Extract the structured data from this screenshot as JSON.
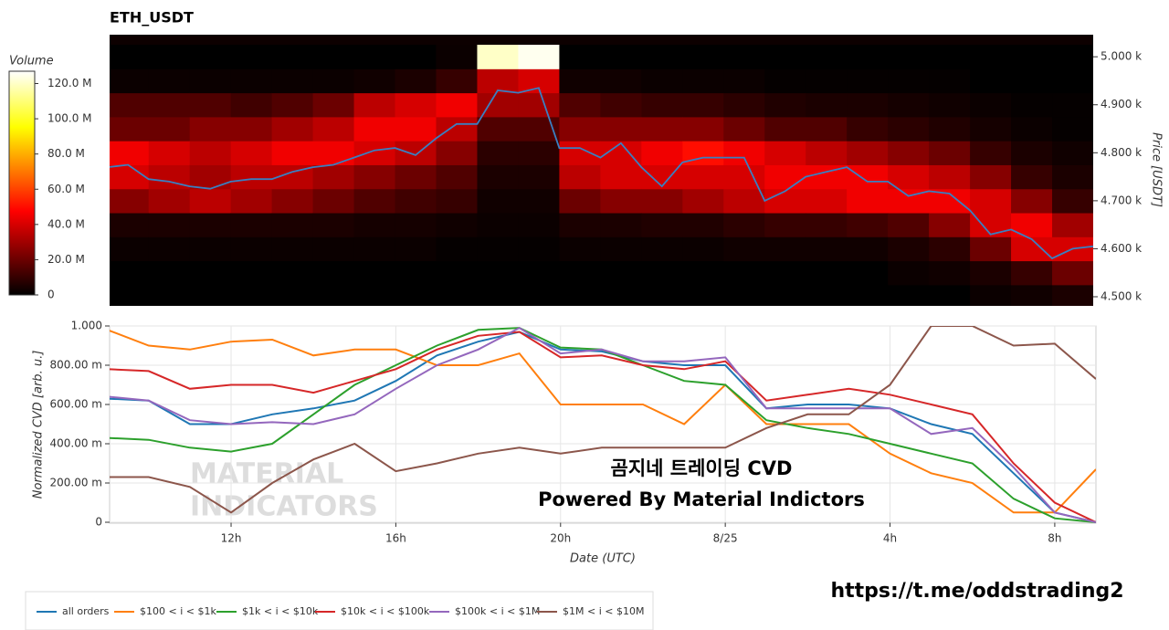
{
  "chart_data": [
    {
      "type": "heatmap",
      "title": "ETH_USDT",
      "colorbar_label": "Volume",
      "colorscale": "hot",
      "clim": [
        0,
        127
      ],
      "cticks": [
        0,
        {
          "value": 20,
          "label": "20.0 M"
        },
        {
          "value": 40,
          "label": "40.0 M"
        },
        {
          "value": 60,
          "label": "60.0 M"
        },
        {
          "value": 80,
          "label": "80.0 M"
        },
        {
          "value": 100,
          "label": "100.0 M"
        },
        {
          "value": 120,
          "label": "120.0 M"
        }
      ],
      "ylabel": "Price [USDT]",
      "ylim": [
        4481,
        5046
      ],
      "yticks": [
        {
          "value": 4500,
          "label": "4.500 k"
        },
        {
          "value": 4600,
          "label": "4.600 k"
        },
        {
          "value": 4700,
          "label": "4.700 k"
        },
        {
          "value": 4800,
          "label": "4.800 k"
        },
        {
          "value": 4900,
          "label": "4.900 k"
        },
        {
          "value": 5000,
          "label": "5.000 k"
        }
      ],
      "xlim": [
        9.05,
        33
      ],
      "xbins": [
        9,
        10,
        11,
        12,
        13,
        14,
        15,
        16,
        17,
        18,
        19,
        20,
        21,
        22,
        23,
        24,
        25,
        26,
        27,
        28,
        29,
        30,
        31,
        32,
        33
      ],
      "ybins": [
        4475,
        4525,
        4575,
        4625,
        4675,
        4725,
        4775,
        4825,
        4875,
        4925,
        4975,
        5025
      ],
      "z": [
        [
          0,
          0,
          2,
          5,
          25,
          40,
          45,
          20,
          15,
          2,
          0
        ],
        [
          0,
          0,
          2,
          5,
          30,
          35,
          40,
          20,
          15,
          2,
          0
        ],
        [
          0,
          0,
          2,
          5,
          35,
          30,
          35,
          25,
          15,
          2,
          0
        ],
        [
          0,
          0,
          2,
          5,
          30,
          35,
          40,
          25,
          12,
          2,
          0
        ],
        [
          0,
          0,
          2,
          5,
          25,
          35,
          45,
          30,
          15,
          2,
          0
        ],
        [
          0,
          0,
          2,
          5,
          20,
          30,
          45,
          35,
          20,
          2,
          0
        ],
        [
          0,
          0,
          2,
          4,
          15,
          25,
          40,
          45,
          35,
          3,
          0
        ],
        [
          0,
          0,
          2,
          4,
          12,
          20,
          35,
          45,
          40,
          5,
          0
        ],
        [
          0,
          0,
          1,
          3,
          10,
          15,
          25,
          35,
          45,
          10,
          2
        ],
        [
          0,
          0,
          1,
          2,
          3,
          5,
          8,
          15,
          30,
          35,
          120
        ],
        [
          0,
          0,
          1,
          2,
          3,
          5,
          8,
          15,
          30,
          40,
          125
        ],
        [
          0,
          0,
          2,
          5,
          20,
          35,
          40,
          25,
          15,
          3,
          0
        ],
        [
          0,
          0,
          2,
          5,
          25,
          40,
          40,
          25,
          12,
          3,
          0
        ],
        [
          0,
          0,
          2,
          6,
          25,
          40,
          45,
          25,
          10,
          2,
          0
        ],
        [
          0,
          0,
          2,
          6,
          30,
          40,
          50,
          25,
          10,
          2,
          0
        ],
        [
          0,
          0,
          3,
          8,
          35,
          40,
          45,
          20,
          8,
          2,
          0
        ],
        [
          0,
          0,
          3,
          10,
          40,
          45,
          40,
          15,
          6,
          1,
          0
        ],
        [
          0,
          0,
          3,
          10,
          40,
          45,
          35,
          15,
          5,
          1,
          0
        ],
        [
          0,
          0,
          3,
          12,
          45,
          45,
          30,
          10,
          5,
          1,
          0
        ],
        [
          0,
          2,
          5,
          15,
          45,
          40,
          25,
          8,
          4,
          1,
          0
        ],
        [
          0,
          3,
          8,
          25,
          45,
          35,
          20,
          6,
          3,
          1,
          0
        ],
        [
          2,
          5,
          20,
          40,
          40,
          25,
          10,
          4,
          2,
          0,
          0
        ],
        [
          3,
          10,
          40,
          45,
          25,
          10,
          5,
          2,
          1,
          0,
          0
        ],
        [
          5,
          20,
          40,
          30,
          10,
          5,
          3,
          1,
          1,
          0,
          0
        ]
      ],
      "price": {
        "color": "#3a7fc1",
        "x": [
          9,
          9.5,
          10,
          10.5,
          11,
          11.5,
          12,
          12.5,
          13,
          13.5,
          14,
          14.5,
          15,
          15.5,
          16,
          16.5,
          17,
          17.5,
          18,
          18.5,
          19,
          19.5,
          20,
          20.5,
          21,
          21.5,
          22,
          22.5,
          23,
          23.5,
          24,
          24.5,
          25,
          25.5,
          26,
          26.5,
          27,
          27.5,
          28,
          28.5,
          29,
          29.5,
          30,
          30.5,
          31,
          31.5,
          32,
          32.5,
          33
        ],
        "values": [
          4770,
          4775,
          4745,
          4740,
          4730,
          4725,
          4740,
          4745,
          4745,
          4760,
          4770,
          4775,
          4790,
          4805,
          4810,
          4795,
          4830,
          4860,
          4860,
          4930,
          4925,
          4935,
          4810,
          4810,
          4790,
          4820,
          4770,
          4730,
          4780,
          4790,
          4790,
          4790,
          4700,
          4720,
          4750,
          4760,
          4770,
          4740,
          4740,
          4710,
          4720,
          4715,
          4680,
          4630,
          4640,
          4620,
          4580,
          4600,
          4605
        ]
      }
    },
    {
      "type": "line",
      "ylabel": "Normalized CVD [arb. u.]",
      "xlabel": "Date (UTC)",
      "grid": true,
      "xlim": [
        9.05,
        33
      ],
      "xticks": [
        {
          "value": 12,
          "label": "12h"
        },
        {
          "value": 16,
          "label": "16h"
        },
        {
          "value": 20,
          "label": "20h"
        },
        {
          "value": 24,
          "label": "8/25"
        },
        {
          "value": 28,
          "label": "4h"
        },
        {
          "value": 32,
          "label": "8h"
        }
      ],
      "ylim": [
        0,
        1
      ],
      "yticks": [
        0,
        {
          "value": 0.2,
          "label": "200.00 m"
        },
        {
          "value": 0.4,
          "label": "400.00 m"
        },
        {
          "value": 0.6,
          "label": "600.00 m"
        },
        {
          "value": 0.8,
          "label": "800.00 m"
        },
        {
          "value": 1,
          "label": "1.000"
        }
      ],
      "x": [
        9,
        10,
        11,
        12,
        13,
        14,
        15,
        16,
        17,
        18,
        19,
        20,
        21,
        22,
        23,
        24,
        25,
        26,
        27,
        28,
        29,
        30,
        31,
        32,
        33
      ],
      "series": [
        {
          "name": "all orders",
          "color": "#1f77b4",
          "values": [
            0.63,
            0.62,
            0.5,
            0.5,
            0.55,
            0.58,
            0.62,
            0.72,
            0.85,
            0.92,
            0.97,
            0.88,
            0.87,
            0.82,
            0.8,
            0.8,
            0.58,
            0.6,
            0.6,
            0.58,
            0.5,
            0.45,
            0.25,
            0.05,
            0
          ]
        },
        {
          "name": "$100 < i < $1k",
          "color": "#ff7f0e",
          "values": [
            0.98,
            0.9,
            0.88,
            0.92,
            0.93,
            0.85,
            0.88,
            0.88,
            0.8,
            0.8,
            0.86,
            0.6,
            0.6,
            0.6,
            0.5,
            0.7,
            0.5,
            0.5,
            0.5,
            0.35,
            0.25,
            0.2,
            0.05,
            0.05,
            0.27
          ]
        },
        {
          "name": "$1k < i < $10k",
          "color": "#2ca02c",
          "values": [
            0.43,
            0.42,
            0.38,
            0.36,
            0.4,
            0.55,
            0.7,
            0.8,
            0.9,
            0.98,
            0.99,
            0.89,
            0.88,
            0.8,
            0.72,
            0.7,
            0.52,
            0.48,
            0.45,
            0.4,
            0.35,
            0.3,
            0.12,
            0.02,
            0
          ]
        },
        {
          "name": "$10k < i < $100k",
          "color": "#d62728",
          "values": [
            0.78,
            0.77,
            0.68,
            0.7,
            0.7,
            0.66,
            0.72,
            0.78,
            0.88,
            0.95,
            0.97,
            0.84,
            0.85,
            0.8,
            0.78,
            0.82,
            0.62,
            0.65,
            0.68,
            0.65,
            0.6,
            0.55,
            0.3,
            0.1,
            0
          ]
        },
        {
          "name": "$100k < i < $1M",
          "color": "#9467bd",
          "values": [
            0.64,
            0.62,
            0.52,
            0.5,
            0.51,
            0.5,
            0.55,
            0.68,
            0.8,
            0.88,
            0.99,
            0.86,
            0.88,
            0.82,
            0.82,
            0.84,
            0.58,
            0.58,
            0.58,
            0.58,
            0.45,
            0.48,
            0.28,
            0.05,
            0
          ]
        },
        {
          "name": "$1M < i < $10M",
          "color": "#8c564b",
          "values": [
            0.23,
            0.23,
            0.18,
            0.05,
            0.2,
            0.32,
            0.4,
            0.26,
            0.3,
            0.35,
            0.38,
            0.35,
            0.38,
            0.38,
            0.38,
            0.38,
            0.48,
            0.55,
            0.55,
            0.7,
            1,
            1,
            0.9,
            0.91,
            0.73
          ]
        }
      ],
      "annotations": [
        "곰지네 트레이딩 CVD",
        "Powered By Material Indictors"
      ],
      "watermark": [
        "MATERIAL",
        "INDICATORS"
      ]
    }
  ],
  "link": "https://t.me/oddstrading2"
}
